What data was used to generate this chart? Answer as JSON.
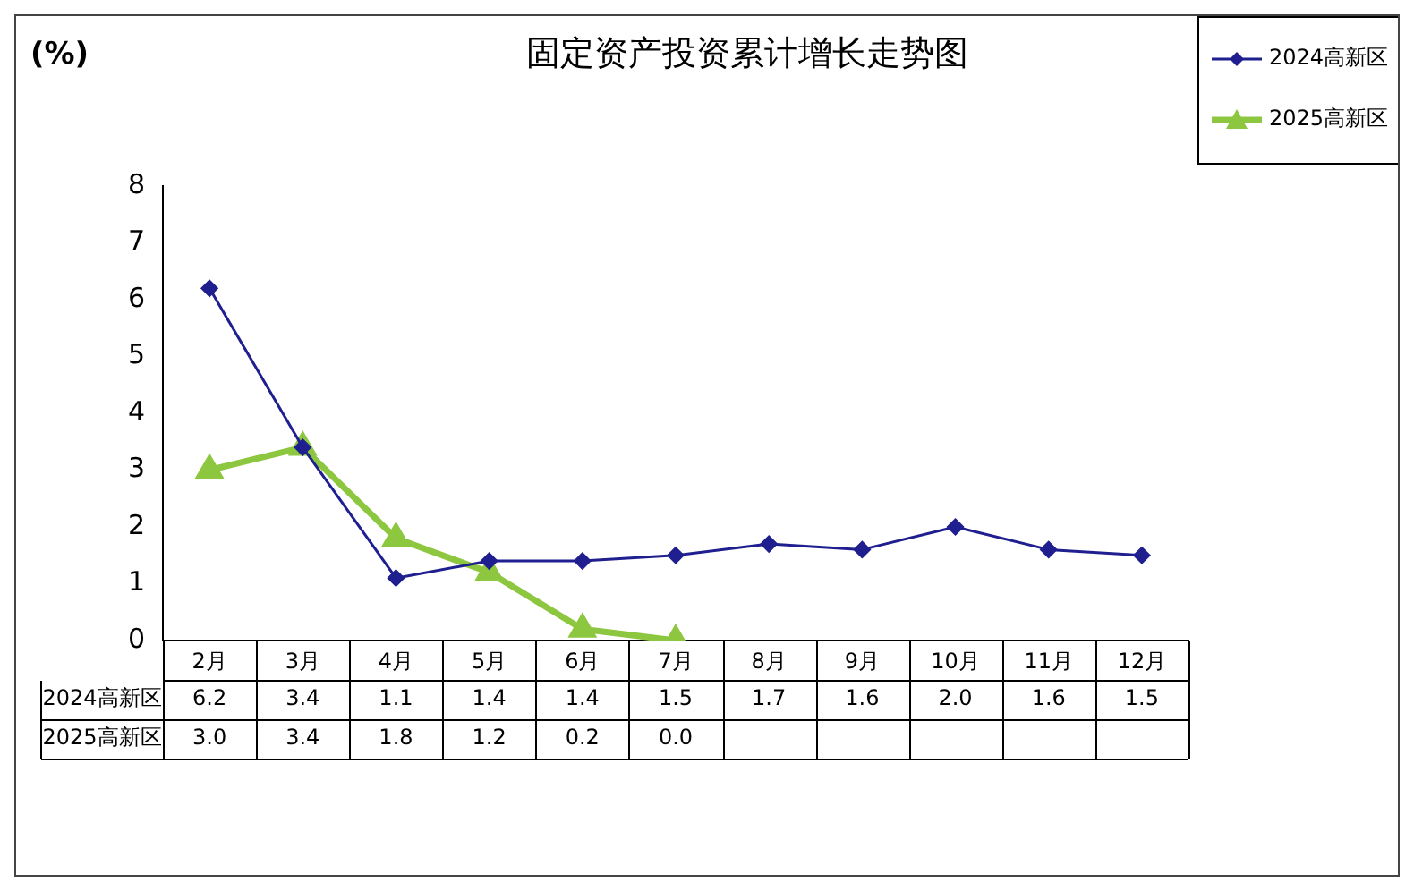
{
  "chart_data": {
    "type": "line",
    "title": "固定资产投资累计增长走势图",
    "ylabel": "(%)",
    "categories": [
      "2月",
      "3月",
      "4月",
      "5月",
      "6月",
      "7月",
      "8月",
      "9月",
      "10月",
      "11月",
      "12月"
    ],
    "series": [
      {
        "name": "2024高新区",
        "color": "#1f1f8f",
        "marker": "diamond",
        "values": [
          6.2,
          3.4,
          1.1,
          1.4,
          1.4,
          1.5,
          1.7,
          1.6,
          2.0,
          1.6,
          1.5
        ],
        "value_labels": [
          "6.2",
          "3.4",
          "1.1",
          "1.4",
          "1.4",
          "1.5",
          "1.7",
          "1.6",
          "2.0",
          "1.6",
          "1.5"
        ]
      },
      {
        "name": "2025高新区",
        "color": "#8dc63f",
        "marker": "triangle",
        "values": [
          3.0,
          3.4,
          1.8,
          1.2,
          0.2,
          0.0,
          null,
          null,
          null,
          null,
          null
        ],
        "value_labels": [
          "3.0",
          "3.4",
          "1.8",
          "1.2",
          "0.2",
          "0.0",
          null,
          null,
          null,
          null,
          null
        ]
      }
    ],
    "ylim": [
      0,
      8
    ],
    "yticks": [
      0,
      1,
      2,
      3,
      4,
      5,
      6,
      7,
      8
    ],
    "grid": false,
    "legend": "top right"
  }
}
